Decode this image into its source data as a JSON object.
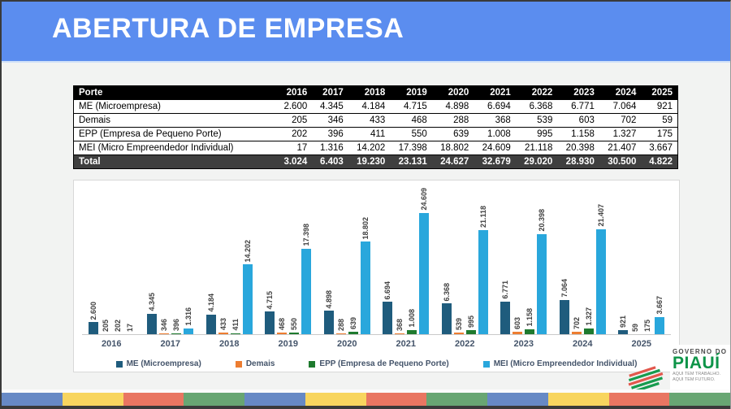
{
  "header": {
    "title": "ABERTURA DE EMPRESA",
    "banner_color": "#5b8def"
  },
  "table": {
    "columns": [
      "Porte",
      "2016",
      "2017",
      "2018",
      "2019",
      "2020",
      "2021",
      "2022",
      "2023",
      "2024",
      "2025"
    ],
    "rows": [
      {
        "label": "ME (Microempresa)",
        "values": [
          "2.600",
          "4.345",
          "4.184",
          "4.715",
          "4.898",
          "6.694",
          "6.368",
          "6.771",
          "7.064",
          "921"
        ]
      },
      {
        "label": "Demais",
        "values": [
          "205",
          "346",
          "433",
          "468",
          "288",
          "368",
          "539",
          "603",
          "702",
          "59"
        ]
      },
      {
        "label": "EPP (Empresa de Pequeno Porte)",
        "values": [
          "202",
          "396",
          "411",
          "550",
          "639",
          "1.008",
          "995",
          "1.158",
          "1.327",
          "175"
        ]
      },
      {
        "label": "MEI (Micro Empreendedor Individual)",
        "values": [
          "17",
          "1.316",
          "14.202",
          "17.398",
          "18.802",
          "24.609",
          "21.118",
          "20.398",
          "21.407",
          "3.667"
        ]
      }
    ],
    "total": {
      "label": "Total",
      "values": [
        "3.024",
        "6.403",
        "19.230",
        "23.131",
        "24.627",
        "32.679",
        "29.020",
        "28.930",
        "30.500",
        "4.822"
      ]
    }
  },
  "chart_data": {
    "type": "bar",
    "categories": [
      "2016",
      "2017",
      "2018",
      "2019",
      "2020",
      "2021",
      "2022",
      "2023",
      "2024",
      "2025"
    ],
    "series": [
      {
        "name": "ME (Microempresa)",
        "color": "#1f5c7d",
        "values": [
          2600,
          4345,
          4184,
          4715,
          4898,
          6694,
          6368,
          6771,
          7064,
          921
        ]
      },
      {
        "name": "Demais",
        "color": "#ed7d31",
        "values": [
          205,
          346,
          433,
          468,
          288,
          368,
          539,
          603,
          702,
          59
        ]
      },
      {
        "name": "EPP (Empresa de Pequeno Porte)",
        "color": "#1e7a2e",
        "values": [
          202,
          396,
          411,
          550,
          639,
          1008,
          995,
          1158,
          1327,
          175
        ]
      },
      {
        "name": "MEI (Micro Empreendedor Individual)",
        "color": "#29a7dc",
        "values": [
          17,
          1316,
          14202,
          17398,
          18802,
          24609,
          21118,
          20398,
          21407,
          3667
        ]
      }
    ],
    "ylim": [
      0,
      24609
    ],
    "grid": false,
    "legend_position": "bottom",
    "value_label_format": "thousands separated by dots, rotated 90deg"
  },
  "footer": {
    "logo": {
      "line1": "GOVERNO DO",
      "line2": "PIAUÍ",
      "tagline1": "AQUI TEM TRABALHO.",
      "tagline2": "AQUI TEM FUTURO.",
      "green": "#0d9448",
      "flag_red": "#e2574c",
      "flag_green": "#169b4e"
    },
    "strip_colors": [
      "#6789c5",
      "#f8d55f",
      "#e97662",
      "#68a673"
    ],
    "strip_repeat": 3
  }
}
